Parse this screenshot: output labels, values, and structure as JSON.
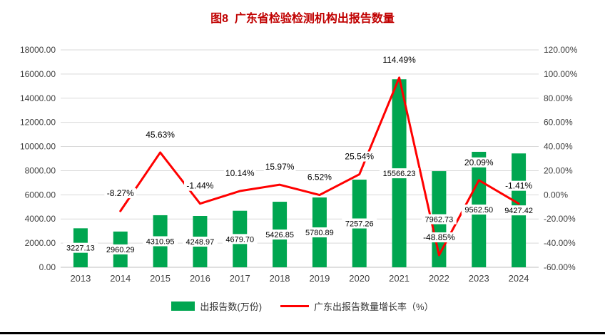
{
  "page": {
    "title": "图8  广东省检验检测机构出报告数量"
  },
  "chart_data": {
    "type": "combo-bar-line",
    "title": "图8  广东省检验检测机构出报告数量",
    "title_color": "#C00000",
    "categories": [
      "2013",
      "2014",
      "2015",
      "2016",
      "2017",
      "2018",
      "2019",
      "2020",
      "2021",
      "2022",
      "2023",
      "2024"
    ],
    "series": [
      {
        "name": "出报告数(万份)",
        "type": "bar",
        "axis": "left",
        "color": "#00A650",
        "values": [
          3227.13,
          2960.29,
          4310.95,
          4248.97,
          4679.7,
          5426.85,
          5780.89,
          7257.26,
          15566.23,
          7962.73,
          9562.5,
          9427.42
        ]
      },
      {
        "name": "广东出报告数量增长率（%）",
        "type": "line",
        "axis": "right",
        "color": "#FF0000",
        "values": [
          null,
          -8.27,
          45.63,
          -1.44,
          10.14,
          15.97,
          6.52,
          25.54,
          114.49,
          -48.85,
          20.09,
          -1.41
        ]
      }
    ],
    "left_axis": {
      "min": 0,
      "max": 18000,
      "step": 2000,
      "format": "0.00"
    },
    "right_axis": {
      "min": -60,
      "max": 140,
      "step": 20,
      "format": "0.00%"
    },
    "grid": true,
    "gridline_color": "#D9D9D9",
    "axis_line_color": "#BFBFBF",
    "legend_position": "bottom"
  }
}
